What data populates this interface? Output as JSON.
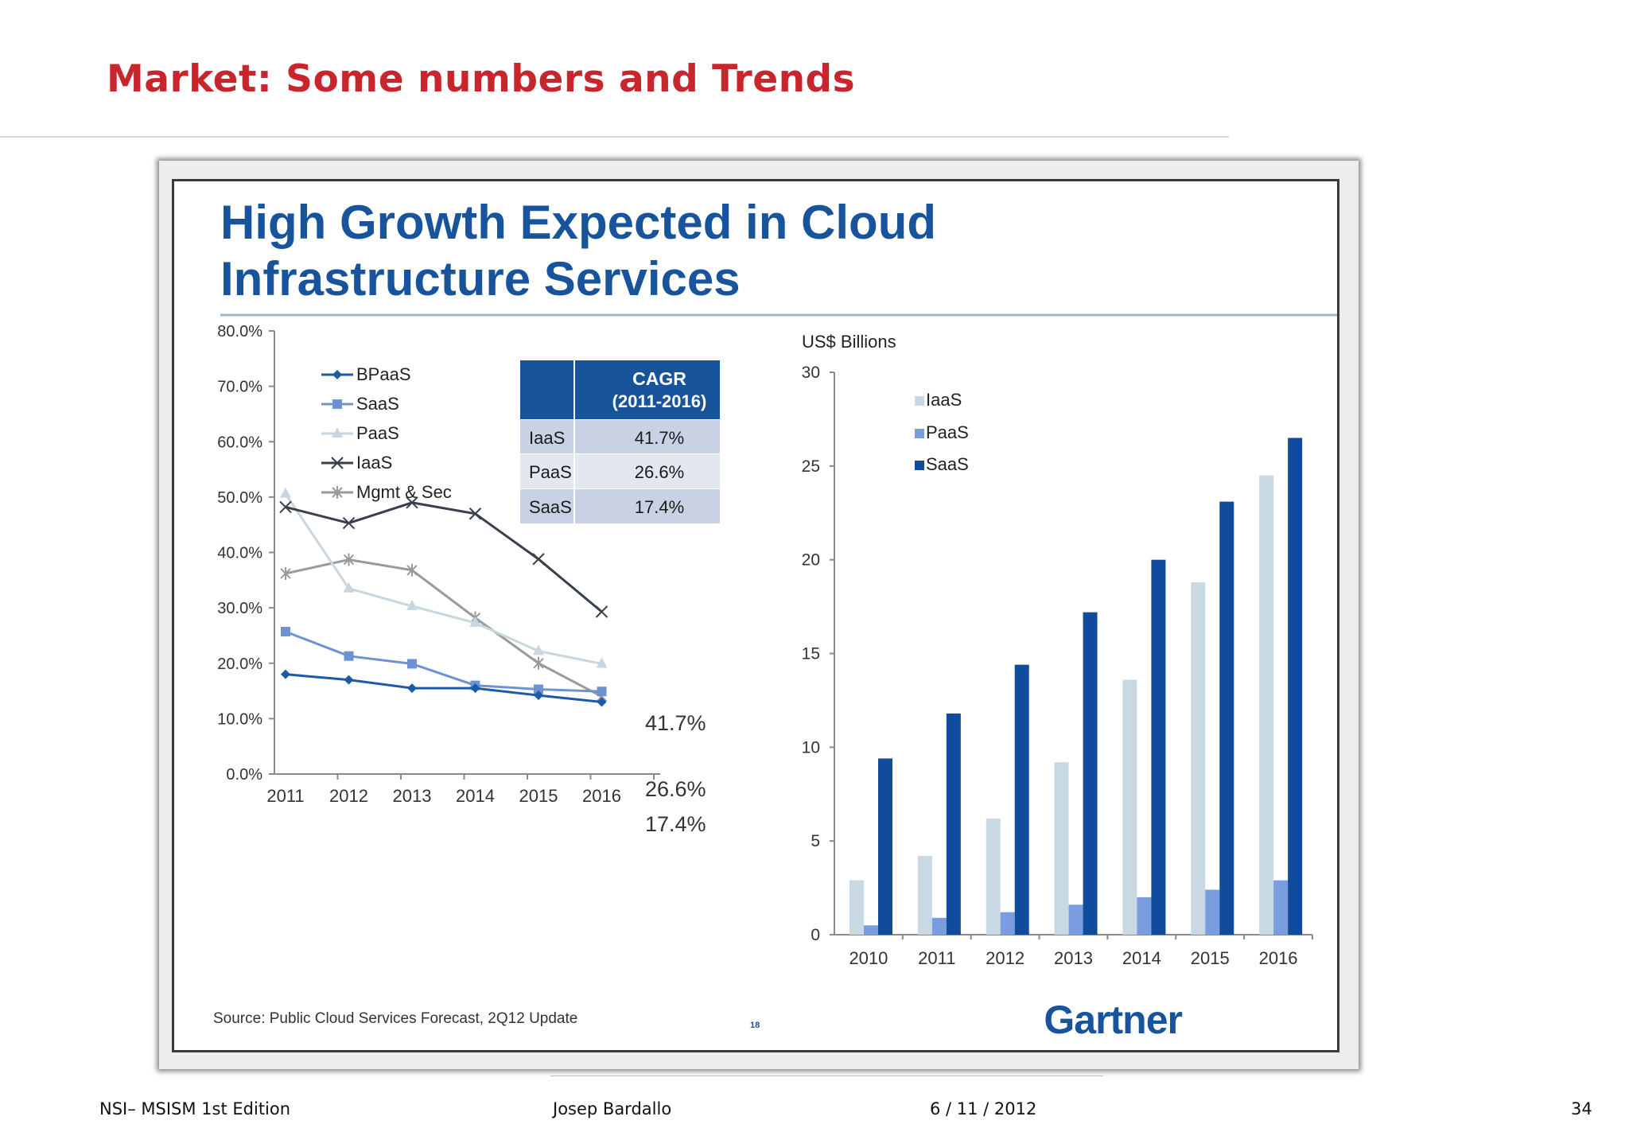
{
  "slide": {
    "title": "Market: Some numbers and Trends",
    "footer_left": "NSI– MSISM 1st Edition",
    "footer_author": "Josep Bardallo",
    "footer_date": "6 / 11 / 2012",
    "page_number": "34"
  },
  "figure": {
    "title_line1": "High Growth Expected in Cloud",
    "title_line2": "Infrastructure Services",
    "source": "Source: Public Cloud Services Forecast, 2Q12 Update",
    "page_mark": "18",
    "brand": "Gartner",
    "cagr_table": {
      "header_line1": "CAGR",
      "header_line2": "(2011-2016)",
      "rows": [
        {
          "label": "IaaS",
          "value": "41.7%"
        },
        {
          "label": "PaaS",
          "value": "26.6%"
        },
        {
          "label": "SaaS",
          "value": "17.4%"
        }
      ]
    }
  },
  "colors": {
    "title_red": "#c8262c",
    "figure_blue": "#17549b",
    "bpaas": "#1d5aa8",
    "saas_line": "#6d93d2",
    "paas_line": "#c8d6df",
    "iaas_line": "#38404d",
    "mgmt_line": "#9a9a9a",
    "bar_iaas": "#c8d9e3",
    "bar_paas": "#7a9de0",
    "bar_saas": "#114b9e"
  },
  "chart_data": [
    {
      "type": "line",
      "title": "",
      "xlabel": "",
      "ylabel": "",
      "x": [
        "2011",
        "2012",
        "2013",
        "2014",
        "2015",
        "2016"
      ],
      "ylim": [
        0,
        80
      ],
      "yticks": [
        "0.0%",
        "10.0%",
        "20.0%",
        "30.0%",
        "40.0%",
        "50.0%",
        "60.0%",
        "70.0%",
        "80.0%"
      ],
      "series": [
        {
          "name": "BPaaS",
          "values": [
            18.0,
            17.0,
            15.5,
            15.5,
            14.2,
            13.0
          ]
        },
        {
          "name": "SaaS",
          "values": [
            25.7,
            21.3,
            19.9,
            16.0,
            15.3,
            14.9
          ]
        },
        {
          "name": "PaaS",
          "values": [
            50.6,
            33.5,
            30.3,
            27.3,
            22.2,
            19.9
          ]
        },
        {
          "name": "IaaS",
          "values": [
            48.2,
            45.3,
            49.0,
            47.0,
            38.8,
            29.3
          ]
        },
        {
          "name": "Mgmt & Sec",
          "values": [
            36.2,
            38.7,
            36.8,
            28.2,
            20.0,
            14.0
          ]
        }
      ],
      "annotations": [
        "41.7%",
        "26.6%",
        "17.4%"
      ],
      "legend": "top-left"
    },
    {
      "type": "bar",
      "title": "",
      "xlabel": "",
      "ylabel": "US$ Billions",
      "categories": [
        "2010",
        "2011",
        "2012",
        "2013",
        "2014",
        "2015",
        "2016"
      ],
      "ylim": [
        0,
        30
      ],
      "yticks": [
        "0",
        "5",
        "10",
        "15",
        "20",
        "25",
        "30"
      ],
      "series": [
        {
          "name": "IaaS",
          "values": [
            2.9,
            4.2,
            6.2,
            9.2,
            13.6,
            18.8,
            24.5
          ]
        },
        {
          "name": "PaaS",
          "values": [
            0.5,
            0.9,
            1.2,
            1.6,
            2.0,
            2.4,
            2.9
          ]
        },
        {
          "name": "SaaS",
          "values": [
            9.4,
            11.8,
            14.4,
            17.2,
            20.0,
            23.1,
            26.5
          ]
        }
      ],
      "legend": "top-left"
    }
  ]
}
